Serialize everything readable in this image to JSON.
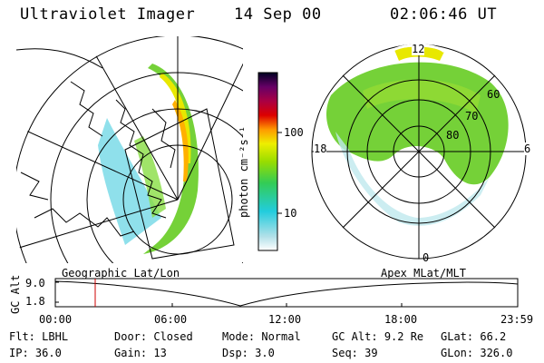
{
  "header": {
    "instrument": "Ultraviolet Imager",
    "date": "14 Sep 00",
    "time": "02:06:46 UT"
  },
  "colorbar": {
    "unit_label": "photon cm⁻²s⁻¹",
    "ticks": [
      "100",
      "10"
    ]
  },
  "polar_plot": {
    "mlt_labels": [
      "12",
      "18",
      "6",
      "0"
    ],
    "lat_labels": [
      "60",
      "70",
      "80"
    ]
  },
  "projections": {
    "left": "Geographic Lat/Lon",
    "right": "Apex MLat/MLT"
  },
  "altitude_plot": {
    "ylabel": "GC Alt",
    "y_ticks": [
      "9.0",
      "1.8"
    ],
    "x_ticks": [
      "00:00",
      "06:00",
      "12:00",
      "18:00",
      "23:59"
    ],
    "current_time_marker": "02:06"
  },
  "status": {
    "row1": [
      {
        "key": "Flt:",
        "value": "LBHL"
      },
      {
        "key": "Door:",
        "value": "Closed"
      },
      {
        "key": "Mode:",
        "value": "Normal"
      },
      {
        "key": "GC Alt:",
        "value": "9.2 Re"
      },
      {
        "key": "GLat:",
        "value": "66.2"
      }
    ],
    "row2": [
      {
        "key": "IP:",
        "value": "36.0"
      },
      {
        "key": "Gain:",
        "value": "13"
      },
      {
        "key": "Dsp:",
        "value": "3.0"
      },
      {
        "key": "Seq:",
        "value": "39"
      },
      {
        "key": "GLon:",
        "value": "326.0"
      }
    ]
  },
  "colors": {
    "aurora_green": "#66cc22",
    "aurora_yellow": "#e8e800",
    "aurora_cyan": "#44ccdd",
    "marker_red": "#cc0000"
  }
}
